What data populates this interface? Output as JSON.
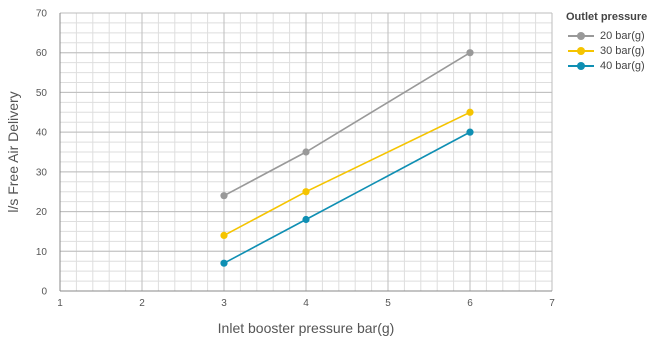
{
  "chart_data": {
    "type": "line",
    "xlabel": "Inlet booster pressure bar(g)",
    "ylabel": "l/s Free Air Delivery",
    "xlim": [
      1,
      7
    ],
    "ylim": [
      0,
      70
    ],
    "x_ticks": [
      1,
      2,
      3,
      4,
      5,
      6,
      7
    ],
    "y_ticks": [
      0,
      10,
      20,
      30,
      40,
      50,
      60,
      70
    ],
    "grid": true,
    "legend_title": "Outlet pressure",
    "legend_position": "top-right",
    "series": [
      {
        "name": "20 bar(g)",
        "color": "#999999",
        "x": [
          3,
          4,
          6
        ],
        "y": [
          24,
          35,
          60
        ]
      },
      {
        "name": "30 bar(g)",
        "color": "#f5c400",
        "x": [
          3,
          4,
          6
        ],
        "y": [
          14,
          25,
          45
        ]
      },
      {
        "name": "40 bar(g)",
        "color": "#0f8fb3",
        "x": [
          3,
          4,
          6
        ],
        "y": [
          7,
          18,
          40
        ]
      }
    ]
  }
}
